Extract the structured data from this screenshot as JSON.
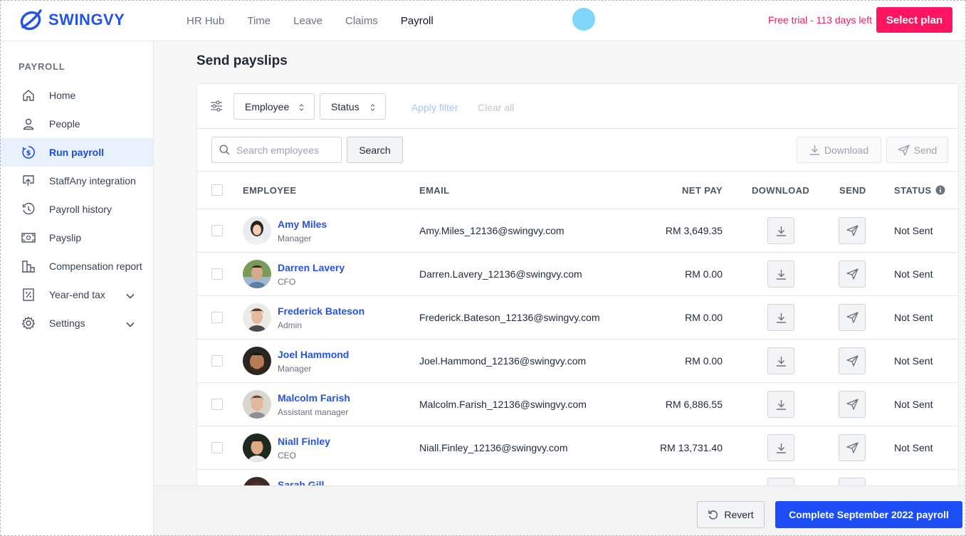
{
  "brand": {
    "name": "SWINGVY"
  },
  "topnav": {
    "items": [
      {
        "label": "HR Hub"
      },
      {
        "label": "Time"
      },
      {
        "label": "Leave"
      },
      {
        "label": "Claims"
      },
      {
        "label": "Payroll",
        "active": true
      }
    ],
    "trial_text": "Free trial - 113 days left",
    "select_plan": "Select plan"
  },
  "sidebar": {
    "heading": "PAYROLL",
    "items": [
      {
        "label": "Home",
        "icon": "home-icon"
      },
      {
        "label": "People",
        "icon": "user-icon"
      },
      {
        "label": "Run payroll",
        "icon": "dollar-cycle-icon",
        "active": true
      },
      {
        "label": "StaffAny integration",
        "icon": "integration-icon"
      },
      {
        "label": "Payroll history",
        "icon": "history-icon"
      },
      {
        "label": "Payslip",
        "icon": "payslip-icon"
      },
      {
        "label": "Compensation report",
        "icon": "report-icon"
      },
      {
        "label": "Year-end tax",
        "icon": "percent-icon",
        "expandable": true
      },
      {
        "label": "Settings",
        "icon": "gear-icon",
        "expandable": true
      }
    ]
  },
  "main": {
    "title": "Send payslips",
    "filters": {
      "employee": "Employee",
      "status": "Status",
      "apply": "Apply filter",
      "clear": "Clear all"
    },
    "search": {
      "placeholder": "Search employees",
      "button": "Search",
      "download": "Download",
      "send": "Send"
    },
    "columns": {
      "employee": "EMPLOYEE",
      "email": "EMAIL",
      "net_pay": "NET PAY",
      "download": "DOWNLOAD",
      "send": "SEND",
      "status": "STATUS"
    },
    "rows": [
      {
        "name": "Amy Miles",
        "role": "Manager",
        "email": "Amy.Miles_12136@swingvy.com",
        "net_pay": "RM 3,649.35",
        "status": "Not Sent"
      },
      {
        "name": "Darren Lavery",
        "role": "CFO",
        "email": "Darren.Lavery_12136@swingvy.com",
        "net_pay": "RM 0.00",
        "status": "Not Sent"
      },
      {
        "name": "Frederick Bateson",
        "role": "Admin",
        "email": "Frederick.Bateson_12136@swingvy.com",
        "net_pay": "RM 0.00",
        "status": "Not Sent"
      },
      {
        "name": "Joel Hammond",
        "role": "Manager",
        "email": "Joel.Hammond_12136@swingvy.com",
        "net_pay": "RM 0.00",
        "status": "Not Sent"
      },
      {
        "name": "Malcolm Farish",
        "role": "Assistant manager",
        "email": "Malcolm.Farish_12136@swingvy.com",
        "net_pay": "RM 6,886.55",
        "status": "Not Sent"
      },
      {
        "name": "Niall Finley",
        "role": "CEO",
        "email": "Niall.Finley_12136@swingvy.com",
        "net_pay": "RM 13,731.40",
        "status": "Not Sent"
      },
      {
        "name": "Sarah Gill",
        "role": "",
        "email": "",
        "net_pay": "",
        "status": ""
      }
    ]
  },
  "footer": {
    "revert": "Revert",
    "complete": "Complete September 2022 payroll"
  },
  "colors": {
    "brand_blue": "#2553e8",
    "trial_pink": "#ee1c64",
    "select_plan_bg": "#ff1461",
    "primary_button": "#1d4ef5",
    "sidebar_active_bg": "#e8f1fc"
  }
}
